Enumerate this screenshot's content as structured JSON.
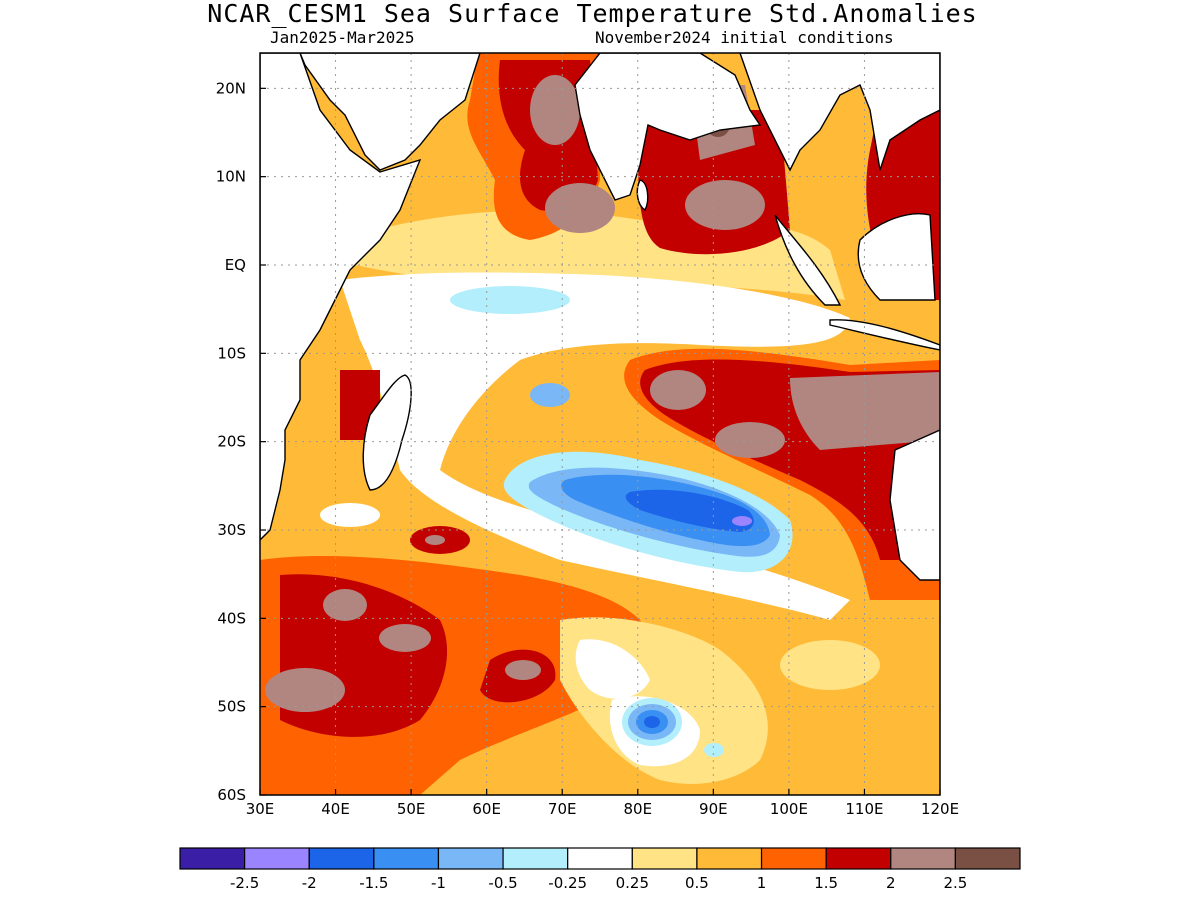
{
  "header": {
    "title": "NCAR_CESM1 Sea Surface Temperature Std.Anomalies",
    "period": "Jan2025-Mar2025",
    "init": "November2024 initial conditions"
  },
  "map": {
    "lon_range": [
      30,
      120
    ],
    "lat_range": [
      -60,
      24
    ],
    "lon_ticks": [
      "30E",
      "40E",
      "50E",
      "60E",
      "70E",
      "80E",
      "90E",
      "100E",
      "110E",
      "120E"
    ],
    "lat_ticks": [
      "20N",
      "10N",
      "EQ",
      "10S",
      "20S",
      "30S",
      "40S",
      "50S",
      "60S"
    ],
    "gridlines": true,
    "land_color": "#ffffff",
    "features": [
      {
        "name": "central-indian-ocean-cold-anomaly",
        "min_anomaly": -2
      },
      {
        "name": "southern-ocean-cold-spot",
        "min_anomaly": -1.5
      },
      {
        "name": "arabian-sea-warm-anomaly",
        "max_anomaly": 2.5
      },
      {
        "name": "bay-of-bengal-warm-anomaly",
        "max_anomaly": 2.5
      },
      {
        "name": "northwest-australia-warm-anomaly",
        "max_anomaly": 2.5
      },
      {
        "name": "south-atlantic-sector-warm-anomaly",
        "max_anomaly": 2.5
      }
    ]
  },
  "colorbar": {
    "colors": [
      "#3a1fa6",
      "#9a84ff",
      "#1c64e8",
      "#3a8ff2",
      "#79b7f6",
      "#b3eefc",
      "#ffffff",
      "#ffe385",
      "#ffbb38",
      "#ff6200",
      "#c20000",
      "#b18580",
      "#7a4f44"
    ],
    "labels": [
      "-2.5",
      "-2",
      "-1.5",
      "-1",
      "-0.5",
      "-0.25",
      "0.25",
      "0.5",
      "1",
      "1.5",
      "2",
      "2.5"
    ]
  }
}
